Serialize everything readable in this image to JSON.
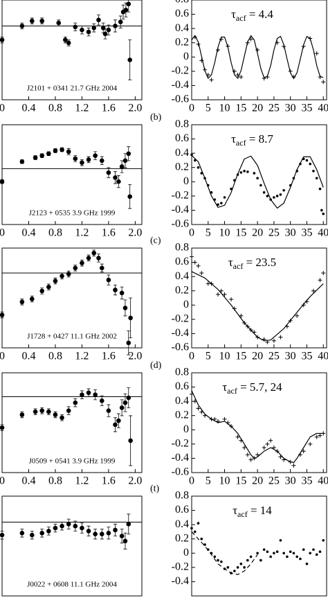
{
  "chart_data": [
    {
      "type": "scatter",
      "color": "#000000",
      "annotation": "J2101 + 0341 21.7 GHz 2004",
      "ref_line": 0.74,
      "x": [
        0,
        0.3,
        0.45,
        0.6,
        0.85,
        0.95,
        1.0,
        1.1,
        1.2,
        1.3,
        1.38,
        1.45,
        1.52,
        1.55,
        1.6,
        1.7,
        1.78,
        1.82,
        1.86,
        1.9,
        1.92
      ],
      "values": [
        0.6,
        0.74,
        0.79,
        0.79,
        0.77,
        0.6,
        0.57,
        0.73,
        0.7,
        0.68,
        0.72,
        0.8,
        0.72,
        0.66,
        0.7,
        0.74,
        0.78,
        0.88,
        0.9,
        0.96,
        0.4
      ],
      "errors": [
        0.03,
        0.03,
        0.03,
        0.03,
        0.03,
        0.03,
        0.03,
        0.04,
        0.04,
        0.04,
        0.04,
        0.05,
        0.05,
        0.05,
        0.05,
        0.06,
        0.06,
        0.07,
        0.07,
        0.08,
        0.2
      ],
      "xlim": [
        0,
        2.1
      ],
      "ylim": [
        0,
        1
      ],
      "xticks": [
        0,
        0.4,
        0.8,
        1.2,
        1.6,
        {
          "value": 2,
          "label": "2.0"
        }
      ]
    },
    {
      "type": "line",
      "annotation": {
        "symbol": "τ",
        "subscript": "acf",
        "text": " = 4.4"
      },
      "xlim": [
        0,
        41
      ],
      "ylim": [
        -0.6,
        0.8
      ],
      "xticks": [
        0,
        5,
        10,
        15,
        20,
        25,
        30,
        35,
        40
      ],
      "yticks": [
        -0.6,
        -0.4,
        -0.2,
        0,
        0.2,
        0.4,
        0.6,
        0.8
      ],
      "series": [
        {
          "style": "solid",
          "color": "#000000",
          "x": [
            0,
            1,
            2,
            3,
            4,
            5,
            6,
            7,
            8,
            9,
            10,
            11,
            12,
            13,
            14,
            15,
            16,
            17,
            18,
            19,
            20,
            21,
            22,
            23,
            24,
            25,
            26,
            27,
            28,
            29,
            30,
            31,
            32,
            33,
            34,
            35,
            36,
            37,
            38,
            39,
            40
          ],
          "values": [
            0.24,
            0.3,
            0.21,
            0.01,
            -0.19,
            -0.3,
            -0.25,
            -0.08,
            0.14,
            0.28,
            0.28,
            0.14,
            -0.08,
            -0.25,
            -0.3,
            -0.19,
            0.01,
            0.21,
            0.3,
            0.24,
            0.05,
            -0.16,
            -0.29,
            -0.27,
            -0.12,
            0.1,
            0.26,
            0.29,
            0.17,
            -0.03,
            -0.22,
            -0.3,
            -0.22,
            -0.03,
            0.17,
            0.29,
            0.26,
            0.1,
            -0.12,
            -0.27,
            -0.29
          ]
        },
        {
          "marker": "plus",
          "color": "#000000",
          "x": [
            1,
            2,
            3,
            4,
            5,
            6,
            8,
            9,
            11,
            13,
            14,
            15,
            17,
            18,
            20,
            22,
            23,
            26,
            28,
            30,
            31,
            34,
            36,
            38,
            39,
            40
          ],
          "values": [
            0.28,
            0.18,
            -0.05,
            -0.18,
            -0.25,
            -0.32,
            0.1,
            0.25,
            0.15,
            -0.2,
            -0.25,
            -0.28,
            0.2,
            0.25,
            0.1,
            -0.3,
            -0.28,
            0.2,
            0.15,
            -0.2,
            -0.28,
            0.15,
            0.26,
            0.05,
            -0.28,
            -0.35
          ]
        }
      ]
    },
    {
      "type": "scatter",
      "color": "#000000",
      "annotation": "J2123 + 0535 3.9 GHz 1999",
      "ref_line": 0.56,
      "x": [
        0,
        0.3,
        0.5,
        0.6,
        0.7,
        0.8,
        0.9,
        1.0,
        1.1,
        1.2,
        1.3,
        1.4,
        1.5,
        1.6,
        1.7,
        1.75,
        1.8,
        1.85,
        1.9,
        1.92
      ],
      "values": [
        0.43,
        0.63,
        0.67,
        0.69,
        0.71,
        0.74,
        0.75,
        0.73,
        0.66,
        0.62,
        0.65,
        0.69,
        0.64,
        0.52,
        0.47,
        0.43,
        0.58,
        0.64,
        0.71,
        0.28
      ],
      "errors": [
        0.02,
        0.02,
        0.02,
        0.02,
        0.02,
        0.02,
        0.02,
        0.03,
        0.03,
        0.03,
        0.03,
        0.04,
        0.04,
        0.05,
        0.06,
        0.06,
        0.06,
        0.07,
        0.07,
        0.12
      ],
      "xlim": [
        0,
        2.1
      ],
      "ylim": [
        0,
        1
      ],
      "xticks": [
        0,
        0.4,
        0.8,
        1.2,
        1.6,
        {
          "value": 2,
          "label": "2.0"
        }
      ]
    },
    {
      "type": "line",
      "panel_label": "(b)",
      "annotation": {
        "symbol": "τ",
        "subscript": "acf",
        "text": " = 8.7"
      },
      "xlim": [
        0,
        41
      ],
      "ylim": [
        -0.6,
        0.8
      ],
      "xticks": [
        0,
        5,
        10,
        15,
        20,
        25,
        30,
        35,
        40
      ],
      "yticks": [
        -0.6,
        -0.4,
        -0.2,
        0,
        0.2,
        0.4,
        0.6,
        0.8
      ],
      "series": [
        {
          "style": "solid",
          "color": "#000000",
          "x": [
            0,
            2,
            4,
            6,
            8,
            10,
            12,
            14,
            16,
            18,
            20,
            22,
            24,
            26,
            28,
            30,
            32,
            34,
            36,
            38,
            40
          ],
          "values": [
            0.37,
            0.28,
            0.05,
            -0.2,
            -0.36,
            -0.33,
            -0.15,
            0.11,
            0.32,
            0.36,
            0.23,
            -0.02,
            -0.25,
            -0.37,
            -0.3,
            -0.08,
            0.17,
            0.35,
            0.35,
            0.17,
            -0.08
          ]
        },
        {
          "marker": "dot",
          "color": "#000000",
          "x": [
            0,
            1,
            2,
            3,
            4,
            5,
            6,
            7,
            8,
            9,
            10,
            12,
            13,
            14,
            15,
            16,
            17,
            19,
            20,
            21,
            22,
            23,
            24,
            25,
            26,
            27,
            28,
            30,
            31,
            32,
            33,
            34,
            35,
            36,
            37,
            38,
            39,
            39.5,
            40
          ],
          "values": [
            0.38,
            0.3,
            0.2,
            0.12,
            0.05,
            -0.05,
            -0.15,
            -0.25,
            -0.32,
            -0.3,
            -0.22,
            -0.1,
            0.02,
            0.1,
            0.13,
            0.15,
            0.14,
            0.12,
            0.05,
            -0.05,
            -0.15,
            -0.2,
            -0.25,
            -0.22,
            -0.2,
            -0.18,
            -0.12,
            -0.05,
            0.05,
            0.15,
            0.25,
            0.32,
            0.3,
            0.25,
            0.15,
            0.05,
            -0.1,
            -0.4,
            -0.45
          ]
        }
      ]
    },
    {
      "type": "scatter",
      "color": "#000000",
      "annotation": "J1728 + 0427 11.1 GHz 2002",
      "ref_line": 0.75,
      "x": [
        0,
        0.3,
        0.45,
        0.6,
        0.7,
        0.8,
        0.9,
        1.0,
        1.1,
        1.2,
        1.3,
        1.38,
        1.45,
        1.5,
        1.6,
        1.7,
        1.8,
        1.85,
        1.9,
        1.93
      ],
      "values": [
        0.33,
        0.46,
        0.49,
        0.57,
        0.61,
        0.67,
        0.72,
        0.74,
        0.8,
        0.85,
        0.9,
        0.95,
        0.9,
        0.8,
        0.68,
        0.58,
        0.55,
        0.4,
        0.05,
        0.3
      ],
      "errors": [
        0.03,
        0.03,
        0.03,
        0.03,
        0.03,
        0.03,
        0.03,
        0.03,
        0.03,
        0.03,
        0.03,
        0.03,
        0.04,
        0.04,
        0.05,
        0.05,
        0.06,
        0.08,
        0.12,
        0.2
      ],
      "xlim": [
        0,
        2.1
      ],
      "ylim": [
        0,
        1
      ],
      "xticks": [
        0,
        0.4,
        0.8,
        1.2,
        1.6,
        {
          "value": 2,
          "label": "2.0"
        }
      ]
    },
    {
      "type": "line",
      "panel_label": "(c)",
      "annotation": {
        "symbol": "τ",
        "subscript": "acf",
        "text": " = 23.5"
      },
      "xlim": [
        0,
        41
      ],
      "ylim": [
        -0.6,
        0.8
      ],
      "xticks": [
        0,
        5,
        10,
        15,
        20,
        25,
        30,
        35,
        40
      ],
      "yticks": [
        -0.6,
        -0.4,
        -0.2,
        0,
        0.2,
        0.4,
        0.6,
        0.8
      ],
      "series": [
        {
          "style": "solid",
          "color": "#000000",
          "x": [
            0,
            4,
            8,
            12,
            16,
            20,
            22,
            24,
            28,
            32,
            36,
            40
          ],
          "values": [
            0.47,
            0.38,
            0.22,
            0.0,
            -0.25,
            -0.45,
            -0.5,
            -0.49,
            -0.33,
            -0.1,
            0.12,
            0.3
          ]
        },
        {
          "marker": "plus",
          "color": "#000000",
          "x": [
            0,
            1,
            2,
            3,
            5,
            6,
            8,
            9,
            10,
            12,
            13,
            15,
            16,
            17,
            18,
            19,
            20,
            22,
            23,
            25,
            27,
            29,
            30,
            32,
            34,
            35,
            37,
            39,
            40
          ],
          "values": [
            0.68,
            0.6,
            0.55,
            0.45,
            0.3,
            0.3,
            0.15,
            0.2,
            0.15,
            0.08,
            -0.05,
            -0.15,
            -0.25,
            -0.3,
            -0.35,
            -0.38,
            -0.45,
            -0.48,
            -0.52,
            -0.5,
            -0.45,
            -0.3,
            -0.22,
            -0.15,
            0.0,
            0.05,
            0.2,
            0.35,
            0.45
          ]
        }
      ]
    },
    {
      "type": "scatter",
      "color": "#000000",
      "annotation": "J0509 + 0541 3.9 GHz 1999",
      "ref_line": 0.76,
      "x": [
        0,
        0.3,
        0.5,
        0.6,
        0.7,
        0.8,
        0.9,
        1.0,
        1.1,
        1.2,
        1.3,
        1.4,
        1.5,
        1.6,
        1.7,
        1.75,
        1.8,
        1.85,
        1.9,
        1.93
      ],
      "values": [
        0.45,
        0.58,
        0.61,
        0.62,
        0.61,
        0.58,
        0.55,
        0.62,
        0.7,
        0.78,
        0.8,
        0.78,
        0.72,
        0.62,
        0.48,
        0.52,
        0.65,
        0.7,
        0.75,
        0.32
      ],
      "errors": [
        0.03,
        0.03,
        0.03,
        0.03,
        0.03,
        0.03,
        0.03,
        0.04,
        0.04,
        0.04,
        0.04,
        0.05,
        0.05,
        0.06,
        0.07,
        0.07,
        0.08,
        0.09,
        0.1,
        0.25
      ],
      "xlim": [
        0,
        2.1
      ],
      "ylim": [
        0,
        1
      ],
      "xticks": [
        0,
        0.4,
        0.8,
        1.2,
        1.6,
        {
          "value": 2,
          "label": "2.0"
        }
      ]
    },
    {
      "type": "line",
      "panel_label": "(d)",
      "annotation": {
        "symbol": "τ",
        "subscript": "acf",
        "text": " = 5.7, 24"
      },
      "xlim": [
        0,
        41
      ],
      "ylim": [
        -0.6,
        0.8
      ],
      "xticks": [
        0,
        5,
        10,
        15,
        20,
        25,
        30,
        35,
        40
      ],
      "yticks": [
        -0.6,
        -0.4,
        -0.2,
        0,
        0.2,
        0.4,
        0.6,
        0.8
      ],
      "series": [
        {
          "style": "solid",
          "color": "#000000",
          "x": [
            0,
            2,
            4,
            6,
            8,
            10,
            12,
            14,
            16,
            18,
            19,
            20,
            22,
            24,
            26,
            28,
            30,
            31,
            32,
            34,
            36,
            38,
            40
          ],
          "values": [
            0.55,
            0.35,
            0.22,
            0.15,
            0.1,
            0.12,
            0.05,
            -0.05,
            -0.2,
            -0.35,
            -0.4,
            -0.38,
            -0.3,
            -0.25,
            -0.3,
            -0.4,
            -0.45,
            -0.46,
            -0.4,
            -0.25,
            -0.1,
            -0.05,
            -0.05
          ]
        },
        {
          "marker": "plus",
          "color": "#000000",
          "x": [
            0,
            1,
            2,
            3,
            4,
            6,
            7,
            8,
            10,
            11,
            12,
            14,
            15,
            16,
            17,
            18,
            19,
            20,
            22,
            23,
            24,
            25,
            26,
            27,
            28,
            30,
            31,
            33,
            34,
            36,
            38,
            39,
            40
          ],
          "values": [
            0.5,
            0.4,
            0.3,
            0.25,
            0.2,
            0.15,
            0.15,
            0.12,
            0.15,
            0.1,
            0.05,
            -0.1,
            -0.15,
            -0.25,
            -0.35,
            -0.42,
            -0.4,
            -0.35,
            -0.25,
            -0.2,
            -0.15,
            -0.25,
            -0.3,
            -0.38,
            -0.42,
            -0.45,
            -0.5,
            -0.35,
            -0.3,
            -0.2,
            -0.1,
            -0.08,
            -0.05
          ]
        }
      ]
    },
    {
      "type": "scatter",
      "color": "#000000",
      "annotation": "J0022 + 0608 11.1 GHz 2004",
      "ref_line": 0.74,
      "x": [
        0,
        0.3,
        0.45,
        0.6,
        0.7,
        0.8,
        0.9,
        1.0,
        1.1,
        1.2,
        1.3,
        1.4,
        1.5,
        1.6,
        1.7,
        1.8,
        1.85,
        1.9
      ],
      "values": [
        0.61,
        0.63,
        0.61,
        0.63,
        0.65,
        0.68,
        0.7,
        0.72,
        0.7,
        0.68,
        0.65,
        0.62,
        0.62,
        0.63,
        0.66,
        0.6,
        0.55,
        0.72
      ],
      "errors": [
        0.04,
        0.04,
        0.04,
        0.04,
        0.04,
        0.04,
        0.04,
        0.05,
        0.05,
        0.05,
        0.05,
        0.05,
        0.05,
        0.06,
        0.06,
        0.07,
        0.08,
        0.1
      ],
      "xlim": [
        0,
        2.1
      ],
      "ylim": [
        0,
        1
      ]
    },
    {
      "type": "line",
      "panel_label": "(t)",
      "annotation": {
        "symbol": "τ",
        "subscript": "acf",
        "text": " = 14"
      },
      "xlim": [
        0,
        41
      ],
      "ylim": [
        -0.6,
        0.8
      ],
      "yticks": [
        -0.4,
        -0.2,
        0,
        0.2,
        0.4,
        0.6,
        0.8
      ],
      "series": [
        {
          "style": "dashed",
          "color": "#000000",
          "x": [
            0,
            2,
            4,
            6,
            8,
            10,
            12,
            14,
            16,
            18,
            20
          ],
          "values": [
            0.3,
            0.2,
            0.1,
            -0.02,
            -0.15,
            -0.22,
            -0.28,
            -0.3,
            -0.25,
            -0.15,
            -0.02
          ]
        },
        {
          "marker": "dot",
          "color": "#000000",
          "x": [
            0,
            1,
            2,
            3,
            4,
            5,
            6,
            7,
            8,
            9,
            10,
            11,
            12,
            13,
            14,
            15,
            16,
            17,
            18,
            20,
            21,
            22,
            23,
            24,
            25,
            26,
            27,
            28,
            29,
            30,
            31,
            32,
            33,
            34,
            35,
            36,
            37,
            38,
            39,
            40
          ],
          "values": [
            0.35,
            0.3,
            0.42,
            0.2,
            0.12,
            0.05,
            0.0,
            -0.05,
            -0.1,
            -0.12,
            -0.22,
            -0.2,
            -0.28,
            -0.25,
            -0.2,
            -0.15,
            -0.2,
            -0.1,
            -0.05,
            0.0,
            -0.1,
            0.05,
            0.02,
            -0.05,
            0.0,
            0.02,
            0.18,
            0.0,
            -0.05,
            0.02,
            0.0,
            -0.05,
            -0.08,
            0.05,
            -0.15,
            0.0,
            0.05,
            -0.02,
            0.02,
            0.18
          ]
        }
      ]
    }
  ]
}
